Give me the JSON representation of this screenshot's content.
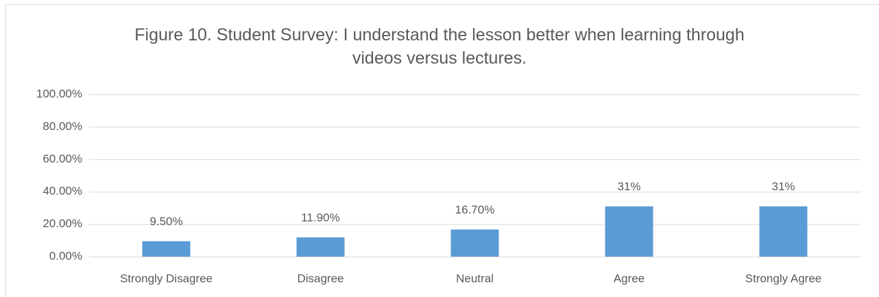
{
  "chart_data": {
    "type": "bar",
    "title": "Figure 10. Student Survey: I understand the lesson better when learning through videos versus lectures.",
    "categories": [
      "Strongly Disagree",
      "Disagree",
      "Neutral",
      "Agree",
      "Strongly Agree"
    ],
    "values": [
      9.5,
      11.9,
      16.7,
      31,
      31
    ],
    "value_labels": [
      "9.50%",
      "11.90%",
      "16.70%",
      "31%",
      "31%"
    ],
    "color": "#5b9bd5",
    "ylim": [
      0,
      100
    ],
    "yticks": [
      {
        "value": 0,
        "label": "0.00%"
      },
      {
        "value": 20,
        "label": "20.00%"
      },
      {
        "value": 40,
        "label": "40.00%"
      },
      {
        "value": 60,
        "label": "60.00%"
      },
      {
        "value": 80,
        "label": "80.00%"
      },
      {
        "value": 100,
        "label": "100.00%"
      }
    ],
    "grid": true
  }
}
